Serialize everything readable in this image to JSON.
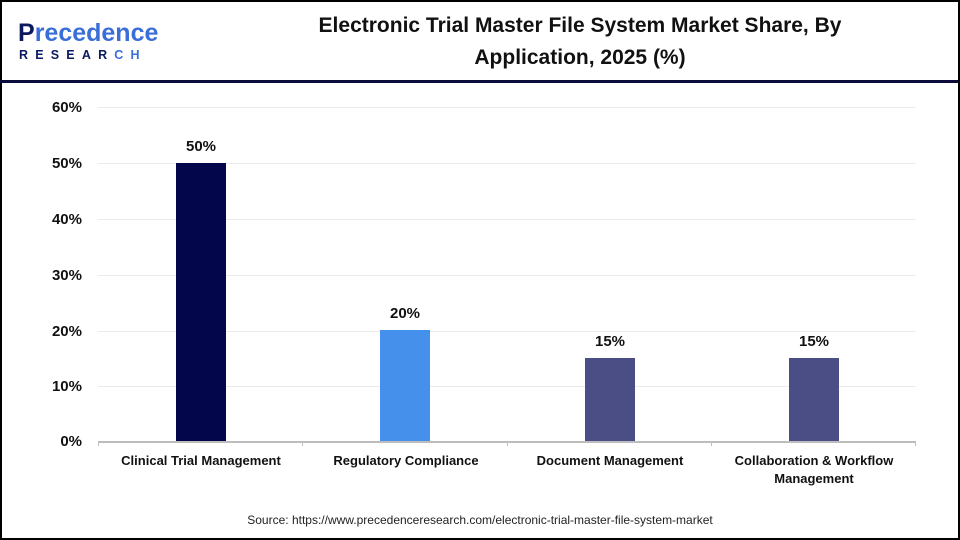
{
  "brand": {
    "logo_main_prefix": "P",
    "logo_main_rest": "recedence",
    "logo_sub_main": "RESEAR",
    "logo_sub_accent": "CH"
  },
  "header": {
    "title_line1": "Electronic Trial Master File System Market Share, By",
    "title_line2": "Application, 2025 (%)"
  },
  "footer": {
    "source": "Source: https://www.precedenceresearch.com/electronic-trial-master-file-system-market"
  },
  "colors": {
    "clinical": "#03064a",
    "regulatory": "#4590ea",
    "document": "#4b4e85",
    "collaboration": "#4b4e85",
    "header_rule": "#0b0b3b"
  },
  "chart_data": {
    "type": "bar",
    "title": "Electronic Trial Master File System Market Share, By Application, 2025 (%)",
    "xlabel": "",
    "ylabel": "",
    "categories": [
      "Clinical Trial Management",
      "Regulatory Compliance",
      "Document Management",
      "Collaboration & Workflow Management"
    ],
    "values": [
      50,
      20,
      15,
      15
    ],
    "value_labels": [
      "50%",
      "20%",
      "15%",
      "15%"
    ],
    "ylim": [
      0,
      60
    ],
    "yticks": [
      "0%",
      "10%",
      "20%",
      "30%",
      "40%",
      "50%",
      "60%"
    ],
    "grid": true,
    "legend": "none"
  },
  "axis": {
    "yticks": [
      "60%",
      "50%",
      "40%",
      "30%",
      "20%",
      "10%",
      "0%"
    ]
  },
  "xlabels": {
    "c0": "Clinical Trial Management",
    "c1": "Regulatory Compliance",
    "c2": "Document Management",
    "c3_line1": "Collaboration & Workflow",
    "c3_line2": "Management"
  }
}
